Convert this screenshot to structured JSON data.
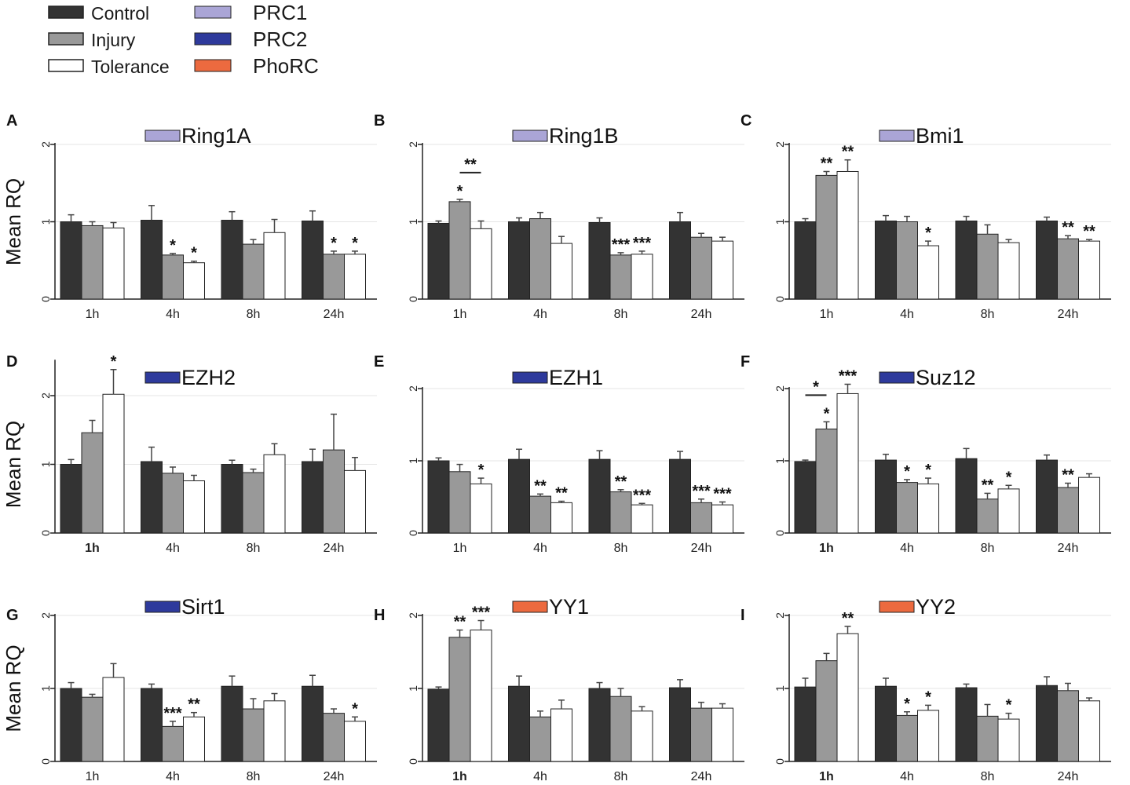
{
  "legend": {
    "groups": [
      {
        "label": "Control",
        "color": "#333333"
      },
      {
        "label": "Injury",
        "color": "#999999"
      },
      {
        "label": "Tolerance",
        "color": "#ffffff"
      }
    ],
    "complexes": [
      {
        "label": "PRC1",
        "color": "#aaa5d6"
      },
      {
        "label": "PRC2",
        "color": "#2e3a9c"
      },
      {
        "label": "PhoRC",
        "color": "#ec6a3f"
      }
    ]
  },
  "colors": {
    "control": "#333333",
    "injury": "#999999",
    "tolerance": "#ffffff",
    "PRC1": "#aaa5d6",
    "PRC2": "#2e3a9c",
    "PhoRC": "#ec6a3f"
  },
  "ylabel": "Mean RQ",
  "chart_data": [
    {
      "panel": "A",
      "type": "bar",
      "title": "Ring1A",
      "complex": "PRC1",
      "ylabel": "Mean RQ",
      "ylim": [
        0,
        2
      ],
      "yticks": [
        "0",
        "1",
        "2"
      ],
      "categories": [
        "1h",
        "4h",
        "8h",
        "24h"
      ],
      "series": [
        {
          "name": "Control",
          "values": [
            1.0,
            1.02,
            1.02,
            1.01
          ],
          "errors": [
            0.09,
            0.19,
            0.11,
            0.13
          ]
        },
        {
          "name": "Injury",
          "values": [
            0.95,
            0.57,
            0.71,
            0.58
          ],
          "errors": [
            0.05,
            0.02,
            0.06,
            0.04
          ]
        },
        {
          "name": "Tolerance",
          "values": [
            0.92,
            0.47,
            0.86,
            0.58
          ],
          "errors": [
            0.07,
            0.02,
            0.17,
            0.04
          ]
        }
      ],
      "annotations": [
        {
          "category": 1,
          "series": 1,
          "text": "*"
        },
        {
          "category": 1,
          "series": 2,
          "text": "*"
        },
        {
          "category": 3,
          "series": 1,
          "text": "*"
        },
        {
          "category": 3,
          "series": 2,
          "text": "*"
        }
      ]
    },
    {
      "panel": "B",
      "type": "bar",
      "title": "Ring1B",
      "complex": "PRC1",
      "ylabel": "",
      "ylim": [
        0,
        2
      ],
      "yticks": [
        "0",
        "1",
        "2"
      ],
      "categories": [
        "1h",
        "4h",
        "8h",
        "24h"
      ],
      "series": [
        {
          "name": "Control",
          "values": [
            0.98,
            1.0,
            0.99,
            1.0
          ],
          "errors": [
            0.03,
            0.05,
            0.06,
            0.12
          ]
        },
        {
          "name": "Injury",
          "values": [
            1.26,
            1.04,
            0.57,
            0.8
          ],
          "errors": [
            0.03,
            0.08,
            0.03,
            0.05
          ]
        },
        {
          "name": "Tolerance",
          "values": [
            0.91,
            0.72,
            0.58,
            0.75
          ],
          "errors": [
            0.1,
            0.09,
            0.04,
            0.05
          ]
        }
      ],
      "annotations": [
        {
          "category": 0,
          "series": 1,
          "text": "*"
        },
        {
          "category": 2,
          "series": 1,
          "text": "***"
        },
        {
          "category": 2,
          "series": 2,
          "text": "***"
        }
      ],
      "brackets": [
        {
          "category": 0,
          "from_series": 1,
          "to_series": 2,
          "text": "**"
        }
      ]
    },
    {
      "panel": "C",
      "type": "bar",
      "title": "Bmi1",
      "complex": "PRC1",
      "ylabel": "",
      "ylim": [
        0,
        2
      ],
      "yticks": [
        "0",
        "1",
        "2"
      ],
      "categories": [
        "1h",
        "4h",
        "8h",
        "24h"
      ],
      "series": [
        {
          "name": "Control",
          "values": [
            1.0,
            1.01,
            1.01,
            1.01
          ],
          "errors": [
            0.04,
            0.07,
            0.06,
            0.05
          ]
        },
        {
          "name": "Injury",
          "values": [
            1.6,
            1.0,
            0.84,
            0.78
          ],
          "errors": [
            0.05,
            0.07,
            0.12,
            0.04
          ]
        },
        {
          "name": "Tolerance",
          "values": [
            1.65,
            0.69,
            0.73,
            0.75
          ],
          "errors": [
            0.15,
            0.06,
            0.04,
            0.02
          ]
        }
      ],
      "annotations": [
        {
          "category": 0,
          "series": 1,
          "text": "**"
        },
        {
          "category": 0,
          "series": 2,
          "text": "**"
        },
        {
          "category": 1,
          "series": 2,
          "text": "*"
        },
        {
          "category": 3,
          "series": 1,
          "text": "**"
        },
        {
          "category": 3,
          "series": 2,
          "text": "**"
        }
      ]
    },
    {
      "panel": "D",
      "type": "bar",
      "title": "EZH2",
      "complex": "PRC2",
      "ylabel": "Mean RQ",
      "ylim": [
        0,
        2.5
      ],
      "yticks": [
        "0",
        "1",
        "2"
      ],
      "categories": [
        "1h",
        "4h",
        "8h",
        "24h"
      ],
      "series": [
        {
          "name": "Control",
          "values": [
            1.0,
            1.04,
            1.0,
            1.04
          ],
          "errors": [
            0.07,
            0.21,
            0.06,
            0.18
          ]
        },
        {
          "name": "Injury",
          "values": [
            1.46,
            0.87,
            0.88,
            1.21
          ],
          "errors": [
            0.18,
            0.09,
            0.05,
            0.52
          ]
        },
        {
          "name": "Tolerance",
          "values": [
            2.02,
            0.76,
            1.14,
            0.91
          ],
          "errors": [
            0.36,
            0.08,
            0.16,
            0.19
          ]
        }
      ],
      "annotations": [
        {
          "category": 0,
          "series": 2,
          "text": "*"
        }
      ]
    },
    {
      "panel": "E",
      "type": "bar",
      "title": "EZH1",
      "complex": "PRC2",
      "ylabel": "",
      "ylim": [
        0,
        2
      ],
      "yticks": [
        "0",
        "1",
        "2"
      ],
      "categories": [
        "1h",
        "4h",
        "8h",
        "24h"
      ],
      "series": [
        {
          "name": "Control",
          "values": [
            1.0,
            1.02,
            1.02,
            1.02
          ],
          "errors": [
            0.04,
            0.14,
            0.12,
            0.11
          ]
        },
        {
          "name": "Injury",
          "values": [
            0.85,
            0.51,
            0.57,
            0.42
          ],
          "errors": [
            0.1,
            0.03,
            0.03,
            0.05
          ]
        },
        {
          "name": "Tolerance",
          "values": [
            0.68,
            0.42,
            0.39,
            0.39
          ],
          "errors": [
            0.08,
            0.02,
            0.02,
            0.04
          ]
        }
      ],
      "annotations": [
        {
          "category": 0,
          "series": 2,
          "text": "*"
        },
        {
          "category": 1,
          "series": 1,
          "text": "**"
        },
        {
          "category": 1,
          "series": 2,
          "text": "**"
        },
        {
          "category": 2,
          "series": 1,
          "text": "**"
        },
        {
          "category": 2,
          "series": 2,
          "text": "***"
        },
        {
          "category": 3,
          "series": 1,
          "text": "***"
        },
        {
          "category": 3,
          "series": 2,
          "text": "***"
        }
      ]
    },
    {
      "panel": "F",
      "type": "bar",
      "title": "Suz12",
      "complex": "PRC2",
      "ylabel": "",
      "ylim": [
        0,
        2
      ],
      "yticks": [
        "0",
        "1",
        "2"
      ],
      "categories": [
        "1h",
        "4h",
        "8h",
        "24h"
      ],
      "series": [
        {
          "name": "Control",
          "values": [
            0.99,
            1.01,
            1.03,
            1.01
          ],
          "errors": [
            0.02,
            0.08,
            0.14,
            0.07
          ]
        },
        {
          "name": "Injury",
          "values": [
            1.44,
            0.7,
            0.47,
            0.63
          ],
          "errors": [
            0.1,
            0.04,
            0.08,
            0.06
          ]
        },
        {
          "name": "Tolerance",
          "values": [
            1.93,
            0.68,
            0.61,
            0.77
          ],
          "errors": [
            0.13,
            0.08,
            0.05,
            0.05
          ]
        }
      ],
      "annotations": [
        {
          "category": 0,
          "series": 1,
          "text": "*"
        },
        {
          "category": 0,
          "series": 2,
          "text": "***"
        },
        {
          "category": 1,
          "series": 1,
          "text": "*"
        },
        {
          "category": 1,
          "series": 2,
          "text": "*"
        },
        {
          "category": 2,
          "series": 1,
          "text": "**"
        },
        {
          "category": 2,
          "series": 2,
          "text": "*"
        },
        {
          "category": 3,
          "series": 1,
          "text": "**"
        }
      ],
      "brackets": [
        {
          "category": 0,
          "from_series": 0,
          "to_series": 1,
          "text": "*"
        }
      ]
    },
    {
      "panel": "G",
      "type": "bar",
      "title": "Sirt1",
      "complex": "PRC2",
      "ylabel": "Mean RQ",
      "ylim": [
        0,
        2
      ],
      "yticks": [
        "0",
        "1",
        "2"
      ],
      "categories": [
        "1h",
        "4h",
        "8h",
        "24h"
      ],
      "series": [
        {
          "name": "Control",
          "values": [
            1.0,
            1.0,
            1.03,
            1.03
          ],
          "errors": [
            0.08,
            0.06,
            0.14,
            0.15
          ]
        },
        {
          "name": "Injury",
          "values": [
            0.88,
            0.48,
            0.72,
            0.66
          ],
          "errors": [
            0.04,
            0.07,
            0.14,
            0.06
          ]
        },
        {
          "name": "Tolerance",
          "values": [
            1.15,
            0.61,
            0.83,
            0.55
          ],
          "errors": [
            0.19,
            0.06,
            0.1,
            0.06
          ]
        }
      ],
      "annotations": [
        {
          "category": 1,
          "series": 1,
          "text": "***"
        },
        {
          "category": 1,
          "series": 2,
          "text": "**"
        },
        {
          "category": 3,
          "series": 2,
          "text": "*"
        }
      ]
    },
    {
      "panel": "H",
      "type": "bar",
      "title": "YY1",
      "complex": "PhoRC",
      "ylabel": "",
      "ylim": [
        0,
        2
      ],
      "yticks": [
        "0",
        "1",
        "2"
      ],
      "categories": [
        "1h",
        "4h",
        "8h",
        "24h"
      ],
      "series": [
        {
          "name": "Control",
          "values": [
            0.99,
            1.03,
            1.0,
            1.01
          ],
          "errors": [
            0.03,
            0.14,
            0.08,
            0.11
          ]
        },
        {
          "name": "Injury",
          "values": [
            1.7,
            0.61,
            0.89,
            0.73
          ],
          "errors": [
            0.1,
            0.08,
            0.11,
            0.08
          ]
        },
        {
          "name": "Tolerance",
          "values": [
            1.8,
            0.72,
            0.69,
            0.73
          ],
          "errors": [
            0.13,
            0.12,
            0.06,
            0.06
          ]
        }
      ],
      "annotations": [
        {
          "category": 0,
          "series": 1,
          "text": "**"
        },
        {
          "category": 0,
          "series": 2,
          "text": "***"
        }
      ]
    },
    {
      "panel": "I",
      "type": "bar",
      "title": "YY2",
      "complex": "PhoRC",
      "ylabel": "",
      "ylim": [
        0,
        2
      ],
      "yticks": [
        "0",
        "1",
        "2"
      ],
      "categories": [
        "1h",
        "4h",
        "8h",
        "24h"
      ],
      "series": [
        {
          "name": "Control",
          "values": [
            1.02,
            1.03,
            1.01,
            1.04
          ],
          "errors": [
            0.12,
            0.11,
            0.05,
            0.12
          ]
        },
        {
          "name": "Injury",
          "values": [
            1.38,
            0.63,
            0.62,
            0.97
          ],
          "errors": [
            0.1,
            0.05,
            0.16,
            0.1
          ]
        },
        {
          "name": "Tolerance",
          "values": [
            1.75,
            0.7,
            0.58,
            0.83
          ],
          "errors": [
            0.1,
            0.07,
            0.08,
            0.04
          ]
        }
      ],
      "annotations": [
        {
          "category": 0,
          "series": 2,
          "text": "**"
        },
        {
          "category": 1,
          "series": 1,
          "text": "*"
        },
        {
          "category": 1,
          "series": 2,
          "text": "*"
        },
        {
          "category": 2,
          "series": 2,
          "text": "*"
        }
      ]
    }
  ]
}
